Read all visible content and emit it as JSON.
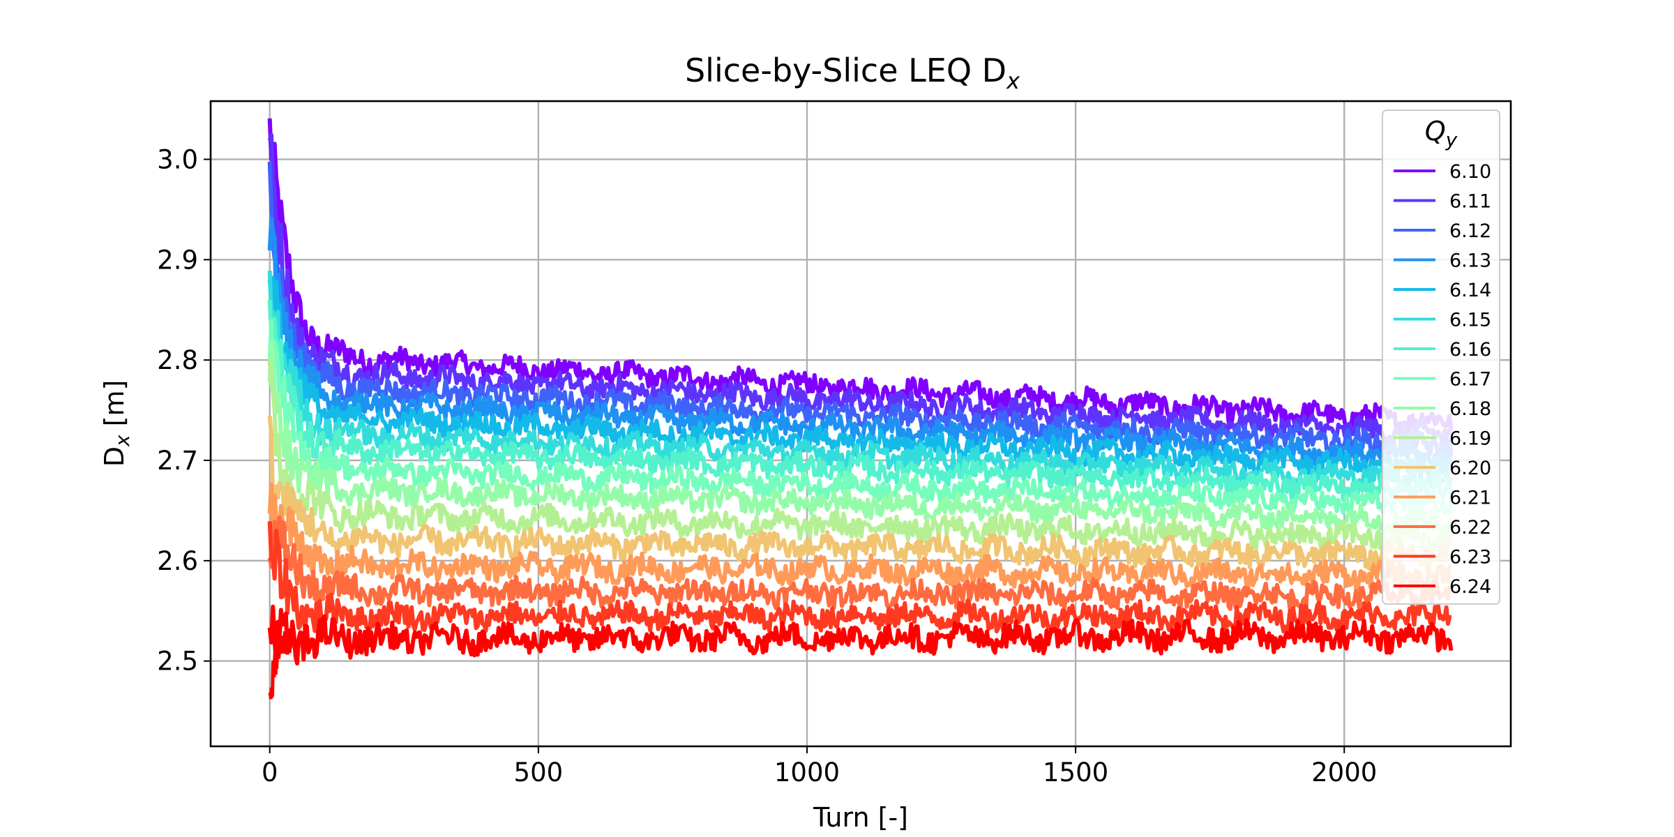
{
  "chart_data": {
    "type": "line",
    "title": {
      "main": "Slice-by-Slice LEQ D",
      "sub": "x"
    },
    "xlabel": "Turn [-]",
    "ylabel": {
      "main": "D",
      "sub": "x",
      "rest": " [m]"
    },
    "xlim": [
      -110,
      2310
    ],
    "ylim": [
      2.415,
      3.058
    ],
    "x_ticks": [
      {
        "value": 0,
        "label": "0"
      },
      {
        "value": 500,
        "label": "500"
      },
      {
        "value": 1000,
        "label": "1000"
      },
      {
        "value": 1500,
        "label": "1500"
      },
      {
        "value": 2000,
        "label": "2000"
      }
    ],
    "y_ticks": [
      {
        "value": 2.5,
        "label": "2.5"
      },
      {
        "value": 2.6,
        "label": "2.6"
      },
      {
        "value": 2.7,
        "label": "2.7"
      },
      {
        "value": 2.8,
        "label": "2.8"
      },
      {
        "value": 2.9,
        "label": "2.9"
      },
      {
        "value": 3.0,
        "label": "3.0"
      }
    ],
    "grid": true,
    "x_range": [
      0,
      2200
    ],
    "legend": {
      "title_main": "Q",
      "title_sub": "y",
      "placement": "top-right"
    },
    "series": [
      {
        "name": "6.10",
        "color": "#8000ff",
        "start": 3.03,
        "at200": 2.8,
        "end": 2.738,
        "noise": 0.01
      },
      {
        "name": "6.11",
        "color": "#5f33fe",
        "start": 3.0,
        "at200": 2.785,
        "end": 2.725,
        "noise": 0.01
      },
      {
        "name": "6.12",
        "color": "#3e63fa",
        "start": 2.97,
        "at200": 2.77,
        "end": 2.714,
        "noise": 0.01
      },
      {
        "name": "6.13",
        "color": "#1e92f3",
        "start": 2.94,
        "at200": 2.755,
        "end": 2.703,
        "noise": 0.01
      },
      {
        "name": "6.14",
        "color": "#13bae9",
        "start": 2.91,
        "at200": 2.74,
        "end": 2.692,
        "noise": 0.01
      },
      {
        "name": "6.15",
        "color": "#33dcdc",
        "start": 2.88,
        "at200": 2.725,
        "end": 2.681,
        "noise": 0.01
      },
      {
        "name": "6.16",
        "color": "#53f2cd",
        "start": 2.85,
        "at200": 2.71,
        "end": 2.67,
        "noise": 0.01
      },
      {
        "name": "6.17",
        "color": "#74fdbc",
        "start": 2.82,
        "at200": 2.69,
        "end": 2.655,
        "noise": 0.01
      },
      {
        "name": "6.18",
        "color": "#94fca8",
        "start": 2.79,
        "at200": 2.67,
        "end": 2.64,
        "noise": 0.01
      },
      {
        "name": "6.19",
        "color": "#b4f093",
        "start": 2.76,
        "at200": 2.645,
        "end": 2.622,
        "noise": 0.011
      },
      {
        "name": "6.20",
        "color": "#f0c471",
        "start": 2.72,
        "at200": 2.62,
        "end": 2.605,
        "noise": 0.011
      },
      {
        "name": "6.21",
        "color": "#ff9a58",
        "start": 2.68,
        "at200": 2.595,
        "end": 2.585,
        "noise": 0.011
      },
      {
        "name": "6.22",
        "color": "#ff6c40",
        "start": 2.64,
        "at200": 2.57,
        "end": 2.565,
        "noise": 0.011
      },
      {
        "name": "6.23",
        "color": "#ff3a20",
        "start": 2.6,
        "at200": 2.545,
        "end": 2.545,
        "noise": 0.011
      },
      {
        "name": "6.24",
        "color": "#ff0000",
        "start": 2.52,
        "at200": 2.522,
        "end": 2.525,
        "noise": 0.012
      }
    ]
  }
}
